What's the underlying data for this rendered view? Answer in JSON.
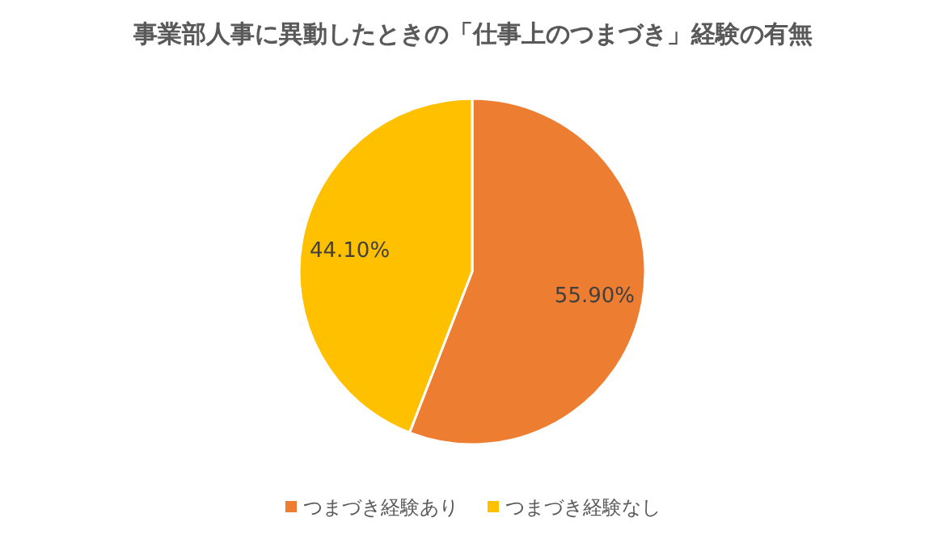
{
  "chart_data": {
    "type": "pie",
    "title": "事業部人事に異動したときの「仕事上のつまづき」経験の有無",
    "categories": [
      "つまづき経験あり",
      "つまづき経験なし"
    ],
    "values": [
      55.9,
      44.1
    ],
    "value_labels": [
      "55.90%",
      "44.10%"
    ],
    "colors": [
      "#ed7d31",
      "#ffc000"
    ],
    "legend": "bottom"
  }
}
